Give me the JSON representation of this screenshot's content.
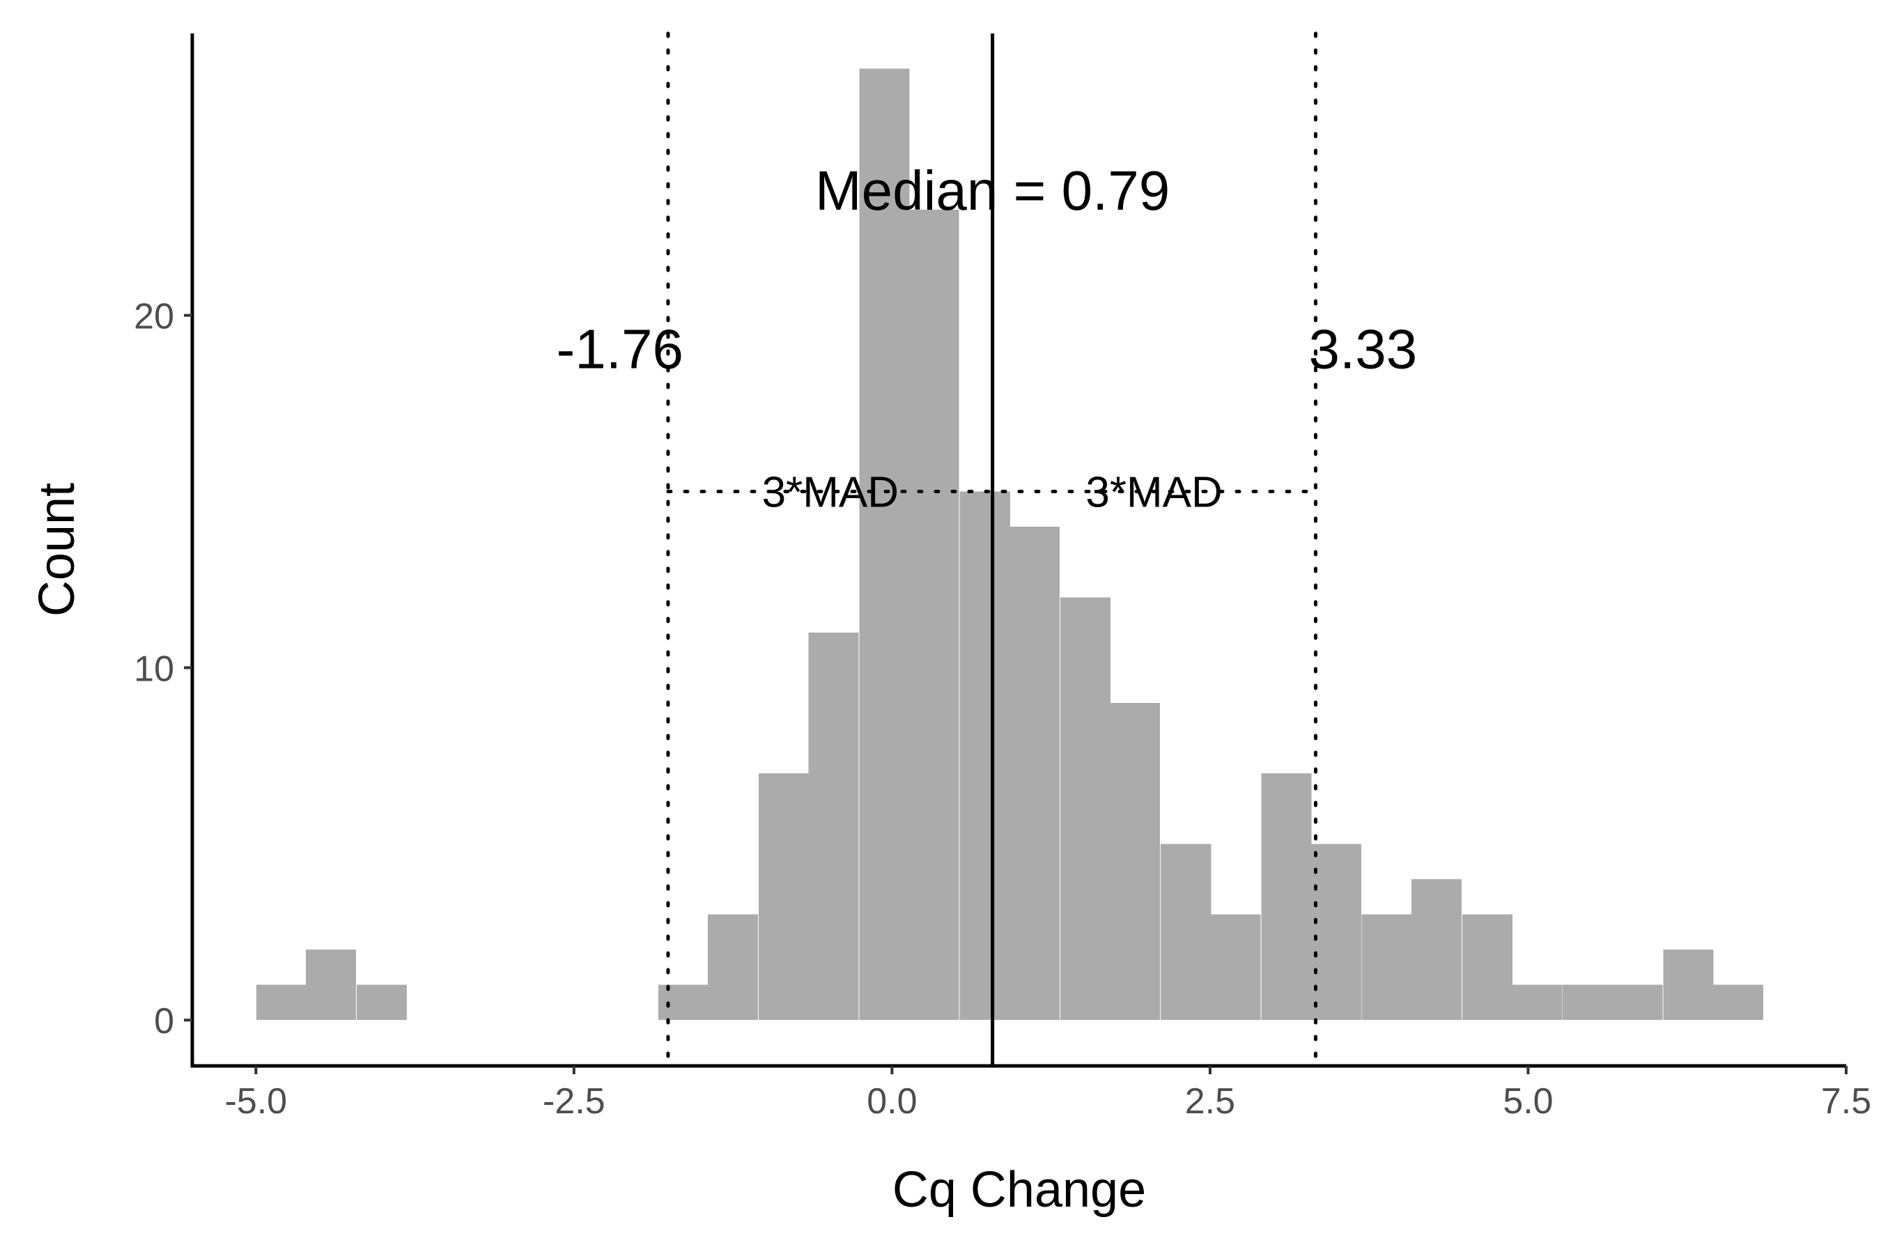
{
  "chart_data": {
    "type": "bar",
    "xlabel": "Cq Change",
    "ylabel": "Count",
    "xlim": [
      -5.5,
      7.5
    ],
    "ylim": [
      -1.3,
      28
    ],
    "x_ticks": [
      "-5.0",
      "-2.5",
      "0.0",
      "2.5",
      "5.0",
      "7.5"
    ],
    "x_tick_values": [
      -5.0,
      -2.5,
      0.0,
      2.5,
      5.0,
      7.5
    ],
    "y_ticks": [
      "0",
      "10",
      "20"
    ],
    "y_tick_values": [
      0,
      10,
      20
    ],
    "bin_width": 0.395,
    "bins": [
      {
        "x": -4.8,
        "count": 1
      },
      {
        "x": -4.41,
        "count": 2
      },
      {
        "x": -4.01,
        "count": 1
      },
      {
        "x": -1.64,
        "count": 1
      },
      {
        "x": -1.25,
        "count": 3
      },
      {
        "x": -0.85,
        "count": 7
      },
      {
        "x": -0.46,
        "count": 11
      },
      {
        "x": -0.06,
        "count": 27
      },
      {
        "x": 0.33,
        "count": 23
      },
      {
        "x": 0.73,
        "count": 15
      },
      {
        "x": 1.12,
        "count": 14
      },
      {
        "x": 1.52,
        "count": 12
      },
      {
        "x": 1.91,
        "count": 9
      },
      {
        "x": 2.31,
        "count": 5
      },
      {
        "x": 2.7,
        "count": 3
      },
      {
        "x": 3.1,
        "count": 7
      },
      {
        "x": 3.49,
        "count": 5
      },
      {
        "x": 3.89,
        "count": 3
      },
      {
        "x": 4.28,
        "count": 4
      },
      {
        "x": 4.68,
        "count": 3
      },
      {
        "x": 5.07,
        "count": 1
      },
      {
        "x": 5.47,
        "count": 1
      },
      {
        "x": 5.86,
        "count": 1
      },
      {
        "x": 6.26,
        "count": 2
      },
      {
        "x": 6.65,
        "count": 1
      }
    ],
    "bar_color": "#ababab",
    "median": 0.79,
    "median_label": "Median = 0.79",
    "lower_threshold": -1.76,
    "lower_label": "-1.76",
    "upper_threshold": 3.33,
    "upper_label": "3.33",
    "mad_label_left": "3*MAD",
    "mad_label_right": "3*MAD",
    "mad_line_y": 15,
    "grid": false
  }
}
